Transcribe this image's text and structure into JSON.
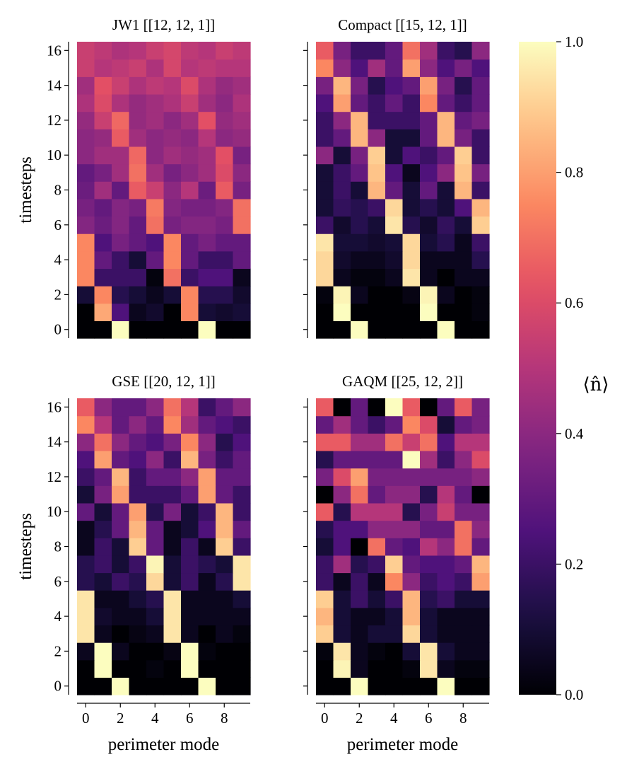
{
  "chart_data": {
    "type": "heatmap",
    "colormap": "magma",
    "vmin": 0.0,
    "vmax": 1.0,
    "x_ticks": [
      0,
      2,
      4,
      6,
      8
    ],
    "y_ticks": [
      0,
      2,
      4,
      6,
      8,
      10,
      12,
      14,
      16
    ],
    "xlabel": "perimeter mode",
    "ylabel": "timesteps",
    "colorbar": {
      "label": "⟨n̂⟩",
      "ticks": [
        "0.0",
        "0.2",
        "0.4",
        "0.6",
        "0.8",
        "1.0"
      ]
    },
    "panels": [
      {
        "title": "JW1 [[12, 12, 1]]",
        "values": [
          [
            0.0,
            0.0,
            1.0,
            0.0,
            0.0,
            0.0,
            0.0,
            1.0,
            0.0,
            0.0
          ],
          [
            0.0,
            0.82,
            0.25,
            0.05,
            0.08,
            0.0,
            0.75,
            0.1,
            0.08,
            0.1
          ],
          [
            0.1,
            0.75,
            0.15,
            0.1,
            0.05,
            0.1,
            0.75,
            0.15,
            0.15,
            0.08
          ],
          [
            0.75,
            0.2,
            0.2,
            0.2,
            0.02,
            0.7,
            0.2,
            0.25,
            0.25,
            0.05
          ],
          [
            0.75,
            0.3,
            0.2,
            0.1,
            0.3,
            0.75,
            0.3,
            0.2,
            0.2,
            0.3
          ],
          [
            0.75,
            0.25,
            0.35,
            0.3,
            0.25,
            0.75,
            0.3,
            0.35,
            0.3,
            0.3
          ],
          [
            0.38,
            0.32,
            0.38,
            0.3,
            0.7,
            0.35,
            0.38,
            0.38,
            0.35,
            0.7
          ],
          [
            0.35,
            0.3,
            0.38,
            0.35,
            0.72,
            0.38,
            0.35,
            0.35,
            0.38,
            0.7
          ],
          [
            0.32,
            0.45,
            0.3,
            0.65,
            0.55,
            0.4,
            0.5,
            0.32,
            0.65,
            0.35
          ],
          [
            0.3,
            0.35,
            0.45,
            0.7,
            0.45,
            0.35,
            0.4,
            0.45,
            0.6,
            0.4
          ],
          [
            0.4,
            0.45,
            0.45,
            0.68,
            0.4,
            0.45,
            0.42,
            0.45,
            0.62,
            0.35
          ],
          [
            0.4,
            0.42,
            0.65,
            0.45,
            0.4,
            0.42,
            0.4,
            0.5,
            0.4,
            0.42
          ],
          [
            0.42,
            0.55,
            0.68,
            0.42,
            0.45,
            0.4,
            0.45,
            0.62,
            0.42,
            0.45
          ],
          [
            0.48,
            0.6,
            0.48,
            0.42,
            0.45,
            0.48,
            0.55,
            0.45,
            0.4,
            0.48
          ],
          [
            0.45,
            0.62,
            0.55,
            0.48,
            0.52,
            0.5,
            0.6,
            0.48,
            0.42,
            0.45
          ],
          [
            0.55,
            0.5,
            0.52,
            0.55,
            0.48,
            0.58,
            0.5,
            0.52,
            0.5,
            0.5
          ],
          [
            0.55,
            0.52,
            0.48,
            0.5,
            0.55,
            0.58,
            0.52,
            0.5,
            0.55,
            0.52
          ]
        ]
      },
      {
        "title": "Compact [[15, 12, 1]]",
        "values": [
          [
            0.0,
            0.0,
            1.0,
            0.0,
            0.0,
            0.0,
            0.0,
            1.0,
            0.0,
            0.0
          ],
          [
            0.0,
            1.0,
            0.0,
            0.0,
            0.0,
            0.0,
            1.0,
            0.0,
            0.0,
            0.02
          ],
          [
            0.02,
            0.98,
            0.05,
            0.0,
            0.0,
            0.03,
            0.98,
            0.05,
            0.0,
            0.02
          ],
          [
            0.92,
            0.05,
            0.02,
            0.02,
            0.05,
            0.95,
            0.05,
            0.0,
            0.05,
            0.05
          ],
          [
            0.92,
            0.08,
            0.05,
            0.05,
            0.08,
            0.92,
            0.05,
            0.05,
            0.05,
            0.15
          ],
          [
            0.95,
            0.1,
            0.1,
            0.08,
            0.1,
            0.92,
            0.1,
            0.15,
            0.05,
            0.2
          ],
          [
            0.2,
            0.08,
            0.15,
            0.1,
            0.95,
            0.15,
            0.08,
            0.18,
            0.1,
            0.9
          ],
          [
            0.1,
            0.18,
            0.15,
            0.2,
            0.92,
            0.1,
            0.15,
            0.1,
            0.25,
            0.85
          ],
          [
            0.1,
            0.2,
            0.1,
            0.85,
            0.3,
            0.1,
            0.3,
            0.1,
            0.85,
            0.2
          ],
          [
            0.1,
            0.2,
            0.3,
            0.88,
            0.25,
            0.05,
            0.25,
            0.4,
            0.88,
            0.35
          ],
          [
            0.4,
            0.1,
            0.35,
            0.9,
            0.1,
            0.25,
            0.2,
            0.3,
            0.9,
            0.2
          ],
          [
            0.2,
            0.3,
            0.85,
            0.4,
            0.1,
            0.1,
            0.3,
            0.85,
            0.35,
            0.2
          ],
          [
            0.2,
            0.4,
            0.85,
            0.2,
            0.2,
            0.2,
            0.3,
            0.85,
            0.3,
            0.35
          ],
          [
            0.25,
            0.8,
            0.3,
            0.2,
            0.3,
            0.2,
            0.75,
            0.3,
            0.2,
            0.3
          ],
          [
            0.35,
            0.85,
            0.35,
            0.15,
            0.25,
            0.3,
            0.8,
            0.35,
            0.15,
            0.3
          ],
          [
            0.75,
            0.4,
            0.25,
            0.45,
            0.3,
            0.8,
            0.4,
            0.25,
            0.35,
            0.25
          ],
          [
            0.65,
            0.35,
            0.2,
            0.2,
            0.3,
            0.7,
            0.45,
            0.2,
            0.15,
            0.4
          ]
        ]
      },
      {
        "title": "GSE [[20, 12, 1]]",
        "values": [
          [
            0.0,
            0.0,
            1.0,
            0.0,
            0.0,
            0.0,
            0.0,
            1.0,
            0.0,
            0.0
          ],
          [
            0.0,
            1.0,
            0.0,
            0.0,
            0.02,
            0.0,
            1.0,
            0.0,
            0.0,
            0.0
          ],
          [
            0.05,
            1.0,
            0.05,
            0.0,
            0.0,
            0.03,
            1.0,
            0.02,
            0.0,
            0.0
          ],
          [
            0.95,
            0.05,
            0.0,
            0.03,
            0.05,
            0.95,
            0.05,
            0.0,
            0.05,
            0.02
          ],
          [
            0.95,
            0.08,
            0.05,
            0.05,
            0.1,
            0.95,
            0.05,
            0.05,
            0.05,
            0.05
          ],
          [
            0.95,
            0.05,
            0.05,
            0.1,
            0.15,
            0.95,
            0.05,
            0.05,
            0.05,
            0.1
          ],
          [
            0.15,
            0.1,
            0.2,
            0.15,
            0.92,
            0.1,
            0.2,
            0.05,
            0.15,
            0.95
          ],
          [
            0.15,
            0.2,
            0.1,
            0.2,
            0.98,
            0.1,
            0.2,
            0.15,
            0.1,
            0.95
          ],
          [
            0.05,
            0.2,
            0.1,
            0.9,
            0.3,
            0.05,
            0.2,
            0.05,
            0.9,
            0.2
          ],
          [
            0.05,
            0.15,
            0.3,
            0.85,
            0.3,
            0.05,
            0.1,
            0.25,
            0.85,
            0.3
          ],
          [
            0.3,
            0.1,
            0.3,
            0.8,
            0.15,
            0.35,
            0.1,
            0.2,
            0.85,
            0.2
          ],
          [
            0.1,
            0.35,
            0.8,
            0.2,
            0.2,
            0.2,
            0.3,
            0.8,
            0.3,
            0.2
          ],
          [
            0.2,
            0.3,
            0.85,
            0.2,
            0.3,
            0.3,
            0.4,
            0.8,
            0.3,
            0.3
          ],
          [
            0.25,
            0.8,
            0.3,
            0.25,
            0.4,
            0.2,
            0.85,
            0.35,
            0.2,
            0.3
          ],
          [
            0.4,
            0.7,
            0.4,
            0.3,
            0.25,
            0.35,
            0.75,
            0.4,
            0.15,
            0.25
          ],
          [
            0.75,
            0.5,
            0.3,
            0.4,
            0.3,
            0.75,
            0.45,
            0.3,
            0.25,
            0.2
          ],
          [
            0.65,
            0.4,
            0.3,
            0.3,
            0.4,
            0.7,
            0.5,
            0.2,
            0.3,
            0.4
          ]
        ]
      },
      {
        "title": "GAQM [[25, 12, 2]]",
        "values": [
          [
            0.0,
            0.0,
            1.0,
            0.0,
            0.0,
            0.0,
            0.0,
            1.0,
            0.0,
            0.0
          ],
          [
            0.0,
            0.98,
            0.05,
            0.0,
            0.0,
            0.02,
            0.95,
            0.05,
            0.02,
            0.02
          ],
          [
            0.02,
            0.95,
            0.05,
            0.02,
            0.0,
            0.1,
            0.95,
            0.1,
            0.05,
            0.05
          ],
          [
            0.9,
            0.1,
            0.05,
            0.1,
            0.1,
            0.92,
            0.1,
            0.05,
            0.05,
            0.05
          ],
          [
            0.85,
            0.1,
            0.05,
            0.05,
            0.1,
            0.85,
            0.1,
            0.05,
            0.05,
            0.05
          ],
          [
            0.9,
            0.1,
            0.2,
            0.1,
            0.2,
            0.85,
            0.15,
            0.2,
            0.1,
            0.1
          ],
          [
            0.2,
            0.05,
            0.2,
            0.05,
            0.75,
            0.4,
            0.2,
            0.25,
            0.2,
            0.8
          ],
          [
            0.2,
            0.45,
            0.15,
            0.2,
            0.9,
            0.3,
            0.25,
            0.25,
            0.3,
            0.85
          ],
          [
            0.1,
            0.25,
            0.0,
            0.7,
            0.3,
            0.25,
            0.5,
            0.4,
            0.7,
            0.3
          ],
          [
            0.15,
            0.25,
            0.25,
            0.4,
            0.4,
            0.4,
            0.3,
            0.3,
            0.7,
            0.4
          ],
          [
            0.65,
            0.15,
            0.5,
            0.5,
            0.5,
            0.15,
            0.35,
            0.55,
            0.35,
            0.35
          ],
          [
            0.0,
            0.4,
            0.7,
            0.3,
            0.4,
            0.4,
            0.15,
            0.5,
            0.3,
            0.0
          ],
          [
            0.35,
            0.6,
            0.8,
            0.35,
            0.35,
            0.35,
            0.35,
            0.35,
            0.35,
            0.4
          ],
          [
            0.15,
            0.3,
            0.3,
            0.3,
            0.3,
            1.0,
            0.45,
            0.2,
            0.4,
            0.6
          ],
          [
            0.65,
            0.65,
            0.45,
            0.45,
            0.7,
            0.55,
            0.7,
            0.25,
            0.5,
            0.5
          ],
          [
            0.3,
            0.45,
            0.3,
            0.2,
            0.3,
            0.75,
            0.6,
            0.1,
            0.3,
            0.35
          ],
          [
            0.65,
            0.0,
            0.3,
            0.0,
            1.0,
            0.65,
            0.0,
            0.3,
            0.65,
            0.35
          ]
        ]
      }
    ]
  }
}
